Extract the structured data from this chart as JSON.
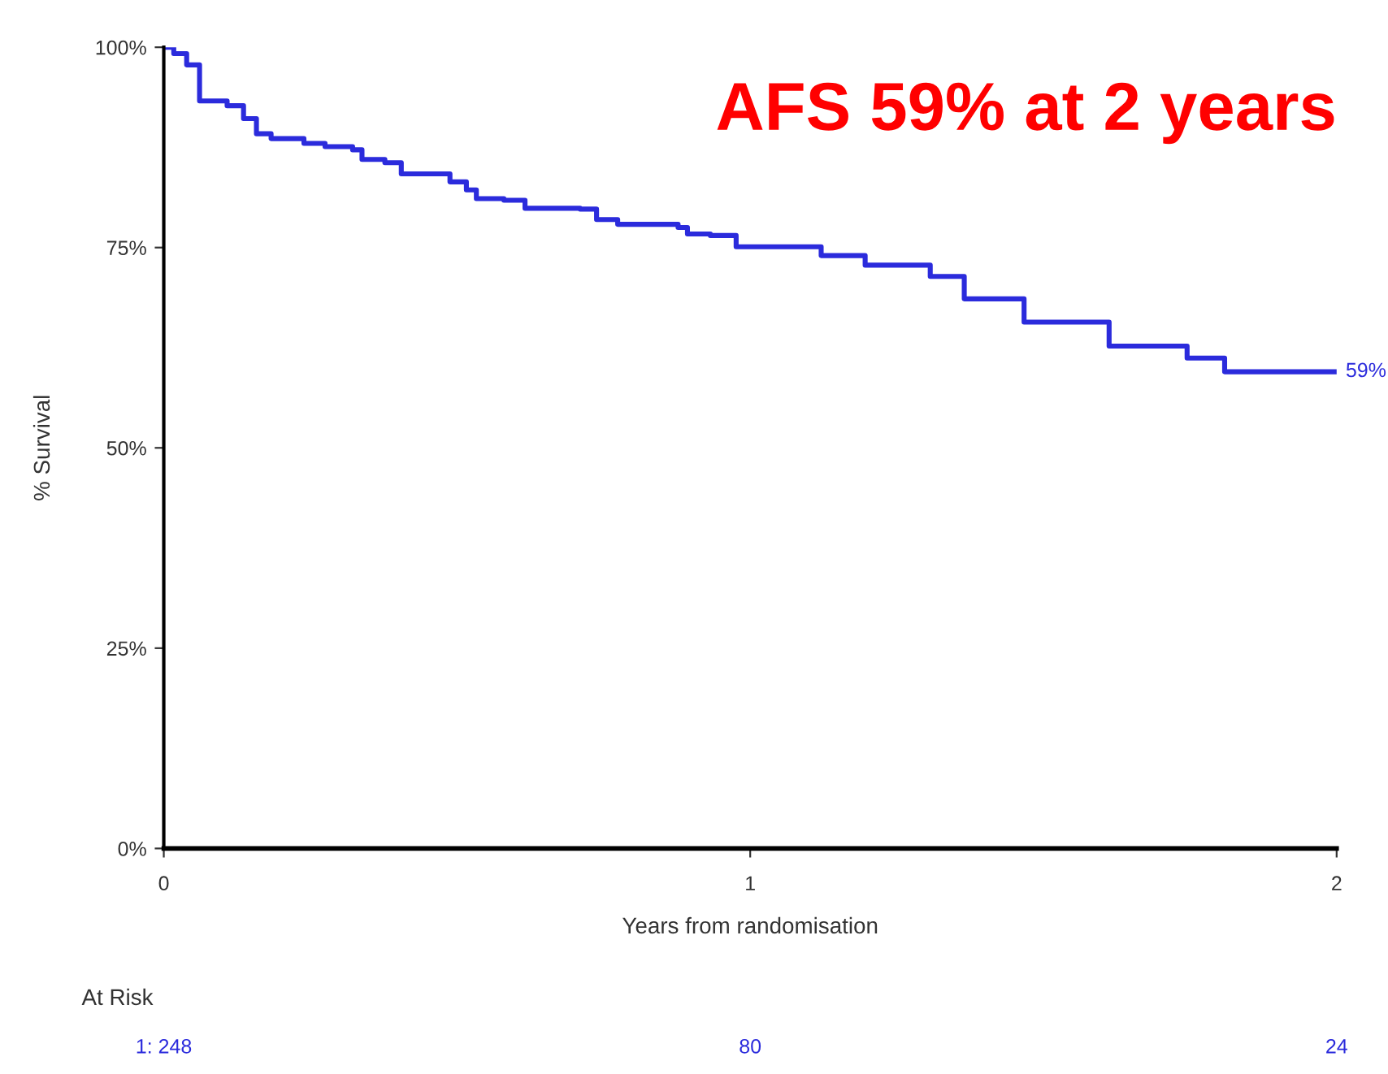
{
  "chart_data": {
    "type": "step",
    "title": "AFS 59% at 2 years",
    "xlabel": "Years from randomisation",
    "ylabel": "% Survival",
    "x": [
      0,
      0.017,
      0.039,
      0.061,
      0.108,
      0.136,
      0.158,
      0.183,
      0.239,
      0.275,
      0.322,
      0.338,
      0.377,
      0.405,
      0.488,
      0.516,
      0.533,
      0.58,
      0.616,
      0.71,
      0.738,
      0.774,
      0.877,
      0.893,
      0.932,
      0.976,
      1.121,
      1.196,
      1.307,
      1.365,
      1.467,
      1.612,
      1.745,
      1.809,
      2.0
    ],
    "series": [
      {
        "color": "#2b2bdc",
        "values": [
          100,
          99.2,
          97.8,
          93.3,
          92.7,
          91.1,
          89.2,
          88.6,
          88.0,
          87.6,
          87.2,
          86.0,
          85.6,
          84.2,
          83.2,
          82.2,
          81.1,
          80.9,
          79.9,
          79.8,
          78.5,
          77.9,
          77.5,
          76.7,
          76.5,
          75.1,
          74.0,
          72.8,
          71.4,
          68.6,
          65.7,
          62.7,
          61.2,
          59.5,
          59.5
        ]
      }
    ],
    "xlim": [
      0,
      2
    ],
    "xticks": [
      0,
      1,
      2
    ],
    "ylim": [
      0,
      100
    ],
    "yticks": [
      {
        "value": 0,
        "label": "0%"
      },
      {
        "value": 25,
        "label": "25%"
      },
      {
        "value": 50,
        "label": "50%"
      },
      {
        "value": 75,
        "label": "75%"
      },
      {
        "value": 100,
        "label": "100%"
      }
    ],
    "grid": false,
    "legend": false,
    "annotations": [
      {
        "text": "59%",
        "x": 2,
        "y": 59.5
      },
      "At Risk",
      "1: 248",
      "80",
      "24"
    ]
  }
}
